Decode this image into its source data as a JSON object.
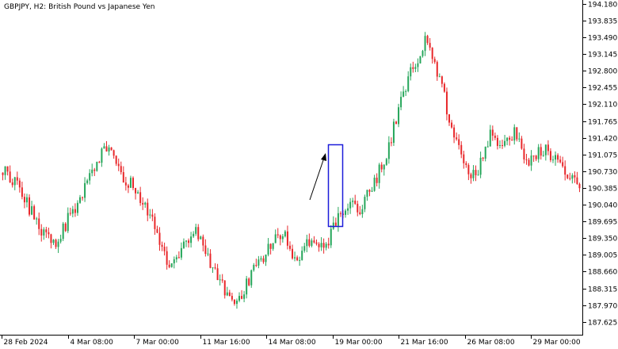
{
  "chart_data": {
    "type": "candlestick",
    "title": "GBPJPY, H2:  British Pound vs Japanese Yen",
    "symbol": "GBPJPY",
    "timeframe": "H2",
    "y_axis": {
      "position": "right",
      "ticks": [
        "194.180",
        "193.835",
        "193.490",
        "193.145",
        "192.800",
        "192.455",
        "192.110",
        "191.765",
        "191.420",
        "191.075",
        "190.730",
        "190.385",
        "190.040",
        "189.695",
        "189.350",
        "189.005",
        "188.660",
        "188.315",
        "187.970",
        "187.625"
      ]
    },
    "ylim": [
      187.36,
      194.26
    ],
    "x_axis": {
      "position": "bottom",
      "tick_labels": [
        "28 Feb 2024",
        "4 Mar 08:00",
        "7 Mar 00:00",
        "11 Mar 16:00",
        "14 Mar 08:00",
        "19 Mar 00:00",
        "21 Mar 16:00",
        "26 Mar 08:00",
        "29 Mar 00:00"
      ]
    },
    "colors": {
      "bull": "#26a65b",
      "bear": "#e8272a",
      "background": "#ffffff",
      "axis": "#000000",
      "annotation": "#1c1cd9"
    },
    "price_anchors": [
      190.75,
      190.55,
      190.0,
      189.5,
      189.15,
      189.7,
      190.1,
      190.75,
      191.2,
      190.8,
      190.45,
      190.1,
      189.45,
      188.7,
      189.2,
      189.6,
      189.0,
      188.45,
      188.0,
      188.35,
      188.9,
      189.2,
      189.45,
      188.85,
      189.35,
      189.05,
      189.75,
      190.05,
      189.95,
      190.5,
      191.1,
      192.1,
      192.9,
      193.45,
      192.6,
      191.75,
      190.75,
      190.65,
      191.45,
      191.35,
      191.5,
      190.9,
      191.2,
      191.0,
      190.75,
      190.3
    ],
    "annotation": {
      "type": "highlight-box-with-arrow",
      "color": "#1c1cd9"
    }
  }
}
